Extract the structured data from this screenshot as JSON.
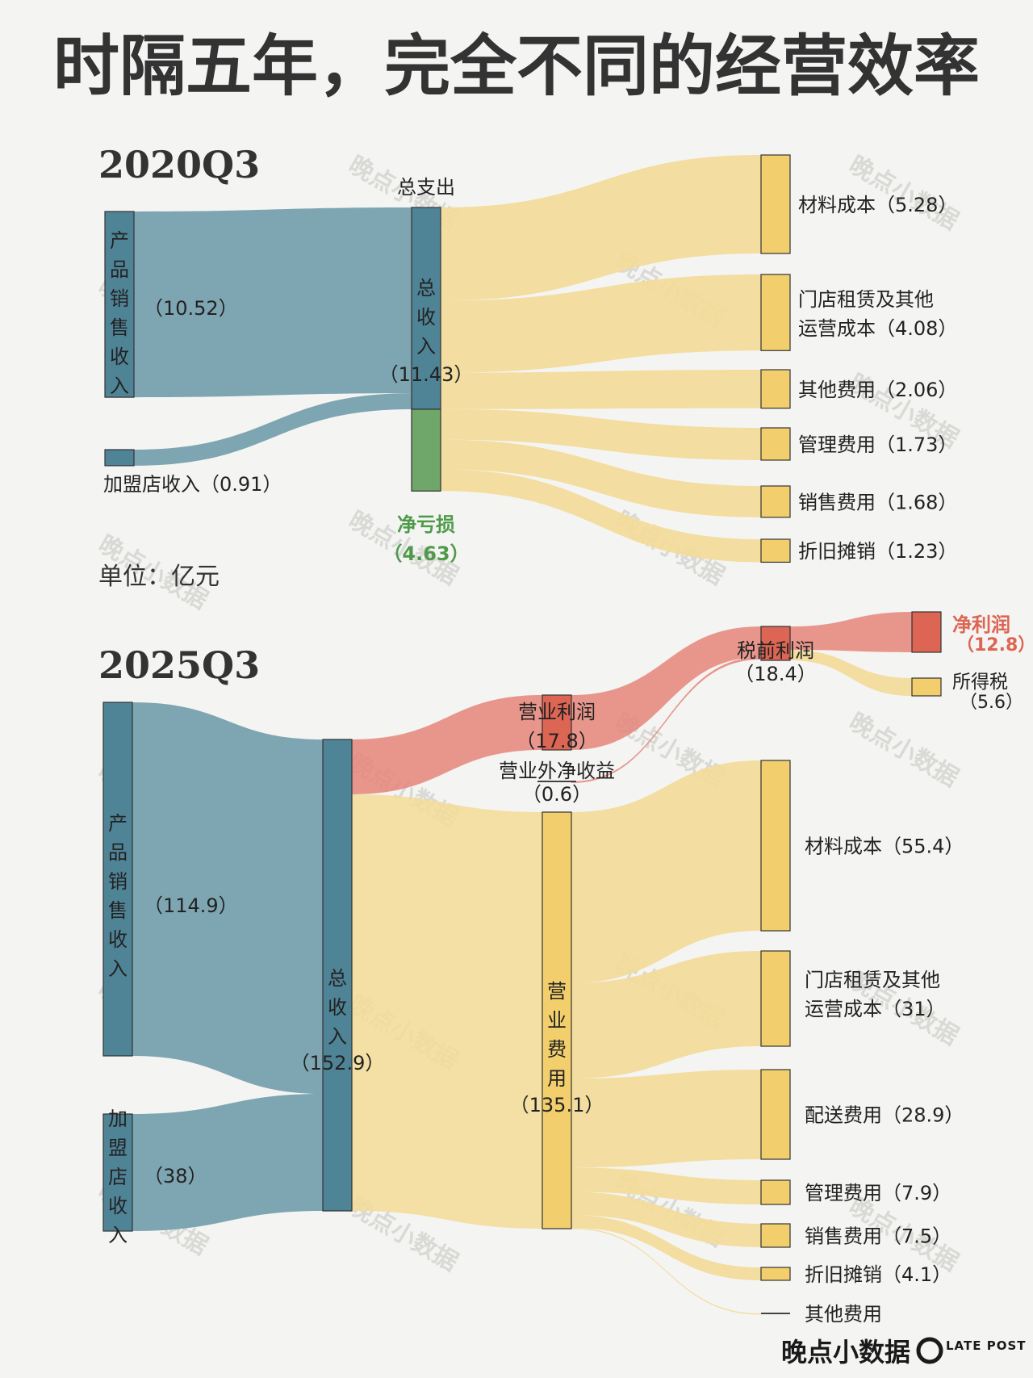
{
  "title": "时隔五年，完全不同的经营效率",
  "unit_label": "单位：亿元",
  "watermark": "晚点小数据",
  "brand": {
    "name": "晚点小数据",
    "logo_text": "LATE POST"
  },
  "colors": {
    "revenue": "#7ea5b2",
    "revenue_node": "#4f8396",
    "cost": "#f3da97",
    "cost_node": "#f2cf6c",
    "profit": "#e5857a",
    "profit_node": "#dc6553",
    "loss": "#6fa66a",
    "loss_text": "#4f9a4a",
    "profit_text": "#dc6553"
  },
  "chart_data": [
    {
      "type": "sankey",
      "period": "2020Q3",
      "unit": "亿元",
      "nodes": [
        {
          "id": "product_sales",
          "label": "产品销售收入",
          "value": 10.52,
          "display": "（10.52）"
        },
        {
          "id": "franchise",
          "label": "加盟店收入",
          "value": 0.91,
          "display": "加盟店收入（0.91）"
        },
        {
          "id": "total_revenue",
          "label": "总收入",
          "value": 11.43,
          "display": "（11.43）"
        },
        {
          "id": "total_expense",
          "label": "总支出",
          "value": 16.06
        },
        {
          "id": "net_loss",
          "label": "净亏损",
          "value": 4.63,
          "display": "（4.63）"
        },
        {
          "id": "material",
          "label": "材料成本（5.28）",
          "value": 5.28
        },
        {
          "id": "rent",
          "label": "门店租赁及其他",
          "label2": "运营成本（4.08）",
          "value": 4.08
        },
        {
          "id": "other",
          "label": "其他费用（2.06）",
          "value": 2.06
        },
        {
          "id": "admin",
          "label": "管理费用（1.73）",
          "value": 1.73
        },
        {
          "id": "selling",
          "label": "销售费用（1.68）",
          "value": 1.68
        },
        {
          "id": "depreciation",
          "label": "折旧摊销（1.23）",
          "value": 1.23
        }
      ],
      "links": [
        {
          "source": "product_sales",
          "target": "total_revenue",
          "value": 10.52
        },
        {
          "source": "franchise",
          "target": "total_revenue",
          "value": 0.91
        },
        {
          "source": "total_expense",
          "target": "material",
          "value": 5.28
        },
        {
          "source": "total_expense",
          "target": "rent",
          "value": 4.08
        },
        {
          "source": "total_expense",
          "target": "other",
          "value": 2.06
        },
        {
          "source": "total_expense",
          "target": "admin",
          "value": 1.73
        },
        {
          "source": "total_expense",
          "target": "selling",
          "value": 1.68
        },
        {
          "source": "total_expense",
          "target": "depreciation",
          "value": 1.23
        }
      ]
    },
    {
      "type": "sankey",
      "period": "2025Q3",
      "unit": "亿元",
      "nodes": [
        {
          "id": "product_sales",
          "label": "产品销售收入",
          "value": 114.9,
          "display": "（114.9）"
        },
        {
          "id": "franchise",
          "label": "加盟店收入",
          "value": 38,
          "display": "（38）"
        },
        {
          "id": "total_revenue",
          "label": "总收入",
          "value": 152.9,
          "display": "（152.9）"
        },
        {
          "id": "operating_profit",
          "label": "营业利润",
          "value": 17.8,
          "display": "（17.8）"
        },
        {
          "id": "non_operating",
          "label": "营业外净收益",
          "value": 0.6,
          "display": "（0.6）"
        },
        {
          "id": "pretax_profit",
          "label": "税前利润",
          "value": 18.4,
          "display": "（18.4）"
        },
        {
          "id": "net_profit",
          "label": "净利润",
          "value": 12.8,
          "display": "（12.8）"
        },
        {
          "id": "income_tax",
          "label": "所得税",
          "value": 5.6,
          "display": "（5.6）"
        },
        {
          "id": "operating_expense",
          "label": "营业费用",
          "value": 135.1,
          "display": "（135.1）"
        },
        {
          "id": "material",
          "label": "材料成本（55.4）",
          "value": 55.4
        },
        {
          "id": "rent",
          "label": "门店租赁及其他",
          "label2": "运营成本（31）",
          "value": 31
        },
        {
          "id": "delivery",
          "label": "配送费用（28.9）",
          "value": 28.9
        },
        {
          "id": "admin",
          "label": "管理费用（7.9）",
          "value": 7.9
        },
        {
          "id": "selling",
          "label": "销售费用（7.5）",
          "value": 7.5
        },
        {
          "id": "depreciation",
          "label": "折旧摊销（4.1）",
          "value": 4.1
        },
        {
          "id": "other",
          "label": "其他费用",
          "value": 0.3
        }
      ],
      "links": [
        {
          "source": "product_sales",
          "target": "total_revenue",
          "value": 114.9
        },
        {
          "source": "franchise",
          "target": "total_revenue",
          "value": 38
        },
        {
          "source": "total_revenue",
          "target": "operating_profit",
          "value": 17.8
        },
        {
          "source": "total_revenue",
          "target": "operating_expense",
          "value": 135.1
        },
        {
          "source": "operating_profit",
          "target": "pretax_profit",
          "value": 17.8
        },
        {
          "source": "non_operating",
          "target": "pretax_profit",
          "value": 0.6
        },
        {
          "source": "pretax_profit",
          "target": "net_profit",
          "value": 12.8
        },
        {
          "source": "pretax_profit",
          "target": "income_tax",
          "value": 5.6
        },
        {
          "source": "operating_expense",
          "target": "material",
          "value": 55.4
        },
        {
          "source": "operating_expense",
          "target": "rent",
          "value": 31
        },
        {
          "source": "operating_expense",
          "target": "delivery",
          "value": 28.9
        },
        {
          "source": "operating_expense",
          "target": "admin",
          "value": 7.9
        },
        {
          "source": "operating_expense",
          "target": "selling",
          "value": 7.5
        },
        {
          "source": "operating_expense",
          "target": "depreciation",
          "value": 4.1
        },
        {
          "source": "operating_expense",
          "target": "other",
          "value": 0.3
        }
      ]
    }
  ]
}
